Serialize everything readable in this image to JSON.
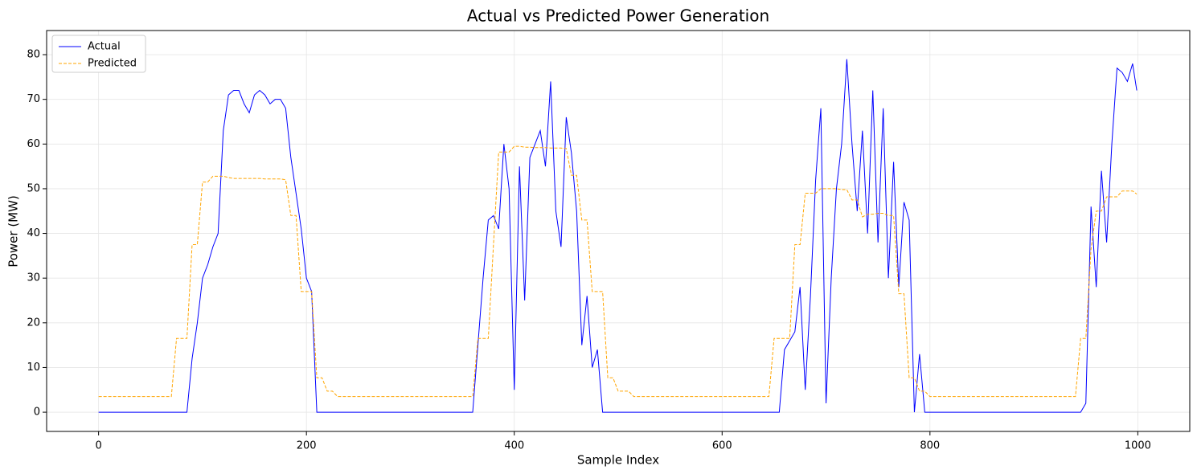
{
  "chart_data": {
    "type": "line",
    "title": "Actual vs Predicted Power Generation",
    "xlabel": "Sample Index",
    "ylabel": "Power (MW)",
    "x": [
      0,
      5,
      10,
      15,
      20,
      25,
      30,
      35,
      40,
      45,
      50,
      55,
      60,
      65,
      70,
      75,
      80,
      85,
      90,
      95,
      100,
      105,
      110,
      115,
      120,
      125,
      130,
      135,
      140,
      145,
      150,
      155,
      160,
      165,
      170,
      175,
      180,
      185,
      190,
      195,
      200,
      205,
      210,
      215,
      220,
      225,
      230,
      235,
      240,
      245,
      250,
      255,
      260,
      265,
      270,
      275,
      280,
      285,
      290,
      295,
      300,
      305,
      310,
      315,
      320,
      325,
      330,
      335,
      340,
      345,
      350,
      355,
      360,
      365,
      370,
      375,
      380,
      385,
      390,
      395,
      400,
      405,
      410,
      415,
      420,
      425,
      430,
      435,
      440,
      445,
      450,
      455,
      460,
      465,
      470,
      475,
      480,
      485,
      490,
      495,
      500,
      505,
      510,
      515,
      520,
      525,
      530,
      535,
      540,
      545,
      550,
      555,
      560,
      565,
      570,
      575,
      580,
      585,
      590,
      595,
      600,
      605,
      610,
      615,
      620,
      625,
      630,
      635,
      640,
      645,
      650,
      655,
      660,
      665,
      670,
      675,
      680,
      685,
      690,
      695,
      700,
      705,
      710,
      715,
      720,
      725,
      730,
      735,
      740,
      745,
      750,
      755,
      760,
      765,
      770,
      775,
      780,
      785,
      790,
      795,
      800,
      805,
      810,
      815,
      820,
      825,
      830,
      835,
      840,
      845,
      850,
      855,
      860,
      865,
      870,
      875,
      880,
      885,
      890,
      895,
      900,
      905,
      910,
      915,
      920,
      925,
      930,
      935,
      940,
      945,
      950,
      955,
      960,
      965,
      970,
      975,
      980,
      985,
      990,
      995,
      999
    ],
    "series": [
      {
        "name": "Actual",
        "color": "#0000ff",
        "dash": false,
        "values": [
          0,
          0,
          0,
          0,
          0,
          0,
          0,
          0,
          0,
          0,
          0,
          0,
          0,
          0,
          0,
          0,
          0,
          0,
          12,
          20,
          30,
          33,
          37,
          40,
          63,
          71,
          72,
          72,
          69,
          67,
          71,
          72,
          71,
          69,
          70,
          70,
          68,
          57,
          49,
          41,
          30,
          27,
          0,
          0,
          0,
          0,
          0,
          0,
          0,
          0,
          0,
          0,
          0,
          0,
          0,
          0,
          0,
          0,
          0,
          0,
          0,
          0,
          0,
          0,
          0,
          0,
          0,
          0,
          0,
          0,
          0,
          0,
          0,
          15,
          30,
          43,
          44,
          41,
          60,
          50,
          5,
          55,
          25,
          57,
          60,
          63,
          55,
          74,
          45,
          37,
          66,
          58,
          45,
          15,
          26,
          10,
          14,
          0,
          0,
          0,
          0,
          0,
          0,
          0,
          0,
          0,
          0,
          0,
          0,
          0,
          0,
          0,
          0,
          0,
          0,
          0,
          0,
          0,
          0,
          0,
          0,
          0,
          0,
          0,
          0,
          0,
          0,
          0,
          0,
          0,
          0,
          0,
          14,
          16,
          18,
          28,
          5,
          26,
          52,
          68,
          2,
          30,
          50,
          60,
          79,
          60,
          45,
          63,
          40,
          72,
          38,
          68,
          30,
          56,
          28,
          47,
          43,
          0,
          13,
          0,
          0,
          0,
          0,
          0,
          0,
          0,
          0,
          0,
          0,
          0,
          0,
          0,
          0,
          0,
          0,
          0,
          0,
          0,
          0,
          0,
          0,
          0,
          0,
          0,
          0,
          0,
          0,
          0,
          0,
          0,
          2,
          46,
          28,
          54,
          38,
          60,
          77,
          76,
          74,
          78,
          72
        ]
      },
      {
        "name": "Predicted",
        "color": "#ffa500",
        "dash": true,
        "values": [
          3.5,
          3.5,
          3.5,
          3.5,
          3.5,
          3.5,
          3.5,
          3.5,
          3.5,
          3.5,
          3.5,
          3.5,
          3.5,
          3.5,
          3.5,
          16.5,
          16.5,
          16.5,
          37.5,
          37.5,
          51.5,
          51.5,
          52.8,
          52.8,
          52.8,
          52.5,
          52.3,
          52.3,
          52.3,
          52.3,
          52.3,
          52.3,
          52.2,
          52.2,
          52.2,
          52.2,
          52,
          44,
          44,
          27,
          27,
          27,
          7.7,
          7.7,
          4.7,
          4.7,
          3.5,
          3.5,
          3.5,
          3.5,
          3.5,
          3.5,
          3.5,
          3.5,
          3.5,
          3.5,
          3.5,
          3.5,
          3.5,
          3.5,
          3.5,
          3.5,
          3.5,
          3.5,
          3.5,
          3.5,
          3.5,
          3.5,
          3.5,
          3.5,
          3.5,
          3.5,
          3.5,
          16.5,
          16.5,
          16.5,
          37.5,
          58.2,
          58.2,
          58.2,
          59.5,
          59.5,
          59.3,
          59.3,
          59.2,
          59.2,
          59.2,
          59.1,
          59.1,
          59.1,
          59,
          53,
          53,
          43,
          43,
          27,
          27,
          27,
          7.7,
          7.7,
          4.7,
          4.7,
          4.7,
          3.5,
          3.5,
          3.5,
          3.5,
          3.5,
          3.5,
          3.5,
          3.5,
          3.5,
          3.5,
          3.5,
          3.5,
          3.5,
          3.5,
          3.5,
          3.5,
          3.5,
          3.5,
          3.5,
          3.5,
          3.5,
          3.5,
          3.5,
          3.5,
          3.5,
          3.5,
          3.5,
          16.5,
          16.5,
          16.5,
          16.5,
          37.5,
          37.5,
          49,
          49,
          49,
          50,
          50,
          50,
          50,
          49.8,
          49.8,
          47.5,
          47.5,
          43.7,
          44.3,
          44.3,
          44.5,
          44.5,
          44,
          44,
          26.5,
          26.5,
          7.7,
          7.7,
          4.7,
          4.7,
          3.5,
          3.5,
          3.5,
          3.5,
          3.5,
          3.5,
          3.5,
          3.5,
          3.5,
          3.5,
          3.5,
          3.5,
          3.5,
          3.5,
          3.5,
          3.5,
          3.5,
          3.5,
          3.5,
          3.5,
          3.5,
          3.5,
          3.5,
          3.5,
          3.5,
          3.5,
          3.5,
          3.5,
          3.5,
          16.5,
          16.5,
          36.5,
          45,
          45,
          48.2,
          48.2,
          48.2,
          49.5,
          49.5,
          49.5,
          48.8
        ]
      }
    ],
    "xlim": [
      -50,
      1050
    ],
    "ylim": [
      -4.3,
      85.4
    ],
    "xticks": [
      0,
      200,
      400,
      600,
      800,
      1000
    ],
    "yticks": [
      0,
      10,
      20,
      30,
      40,
      50,
      60,
      70,
      80
    ],
    "grid": true,
    "legend": "upper left"
  }
}
